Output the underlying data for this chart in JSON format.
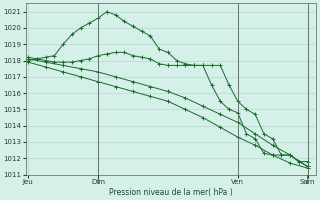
{
  "bg_color": "#d4f0e8",
  "grid_color": "#b8d8cc",
  "line_color": "#1a6b2a",
  "ylabel": "Pression niveau de la mer( hPa )",
  "ylim": [
    1011.0,
    1021.5
  ],
  "yticks": [
    1011,
    1012,
    1013,
    1014,
    1015,
    1016,
    1017,
    1018,
    1019,
    1020,
    1021
  ],
  "xtick_labels": [
    "Jeu",
    "| Dim",
    "Ven",
    "| Sam"
  ],
  "xtick_positions": [
    0,
    8,
    24,
    32
  ],
  "vline_positions": [
    8,
    24,
    32
  ],
  "series1_x": [
    0,
    1,
    2,
    3,
    4,
    5,
    6,
    7,
    8,
    9,
    10,
    11,
    12,
    13,
    14,
    15,
    16,
    17,
    18,
    19,
    20,
    21,
    22,
    23,
    24,
    25,
    26,
    27,
    28,
    29,
    30,
    31,
    32
  ],
  "series1_y": [
    1018.0,
    1018.1,
    1018.2,
    1018.3,
    1019.0,
    1019.6,
    1020.0,
    1020.3,
    1020.6,
    1021.0,
    1020.8,
    1020.4,
    1020.1,
    1019.8,
    1019.5,
    1018.7,
    1018.5,
    1018.0,
    1017.8,
    1017.7,
    1017.7,
    1017.7,
    1017.7,
    1016.5,
    1015.5,
    1015.0,
    1014.7,
    1013.5,
    1013.2,
    1012.2,
    1012.2,
    1011.8,
    1011.5
  ],
  "series2_x": [
    0,
    1,
    2,
    3,
    4,
    5,
    6,
    7,
    8,
    9,
    10,
    11,
    12,
    13,
    14,
    15,
    16,
    17,
    18,
    19,
    20,
    21,
    22,
    23,
    24,
    25,
    26,
    27,
    28,
    29,
    30,
    31,
    32
  ],
  "series2_y": [
    1018.2,
    1018.1,
    1018.0,
    1017.9,
    1017.9,
    1017.9,
    1018.0,
    1018.1,
    1018.3,
    1018.4,
    1018.5,
    1018.5,
    1018.3,
    1018.2,
    1018.1,
    1017.8,
    1017.7,
    1017.7,
    1017.7,
    1017.7,
    1017.7,
    1016.5,
    1015.5,
    1015.0,
    1014.8,
    1013.5,
    1013.2,
    1012.3,
    1012.2,
    1012.2,
    1012.2,
    1011.8,
    1011.8
  ],
  "series3_x": [
    0,
    2,
    4,
    6,
    8,
    10,
    12,
    14,
    16,
    18,
    20,
    22,
    24,
    26,
    28,
    30,
    32
  ],
  "series3_y": [
    1018.1,
    1017.9,
    1017.7,
    1017.5,
    1017.3,
    1017.0,
    1016.7,
    1016.4,
    1016.1,
    1015.7,
    1015.2,
    1014.7,
    1014.2,
    1013.5,
    1012.8,
    1012.2,
    1011.5
  ],
  "series4_x": [
    0,
    2,
    4,
    6,
    8,
    10,
    12,
    14,
    16,
    18,
    20,
    22,
    24,
    26,
    28,
    30,
    32
  ],
  "series4_y": [
    1017.9,
    1017.6,
    1017.3,
    1017.0,
    1016.7,
    1016.4,
    1016.1,
    1015.8,
    1015.5,
    1015.0,
    1014.5,
    1013.9,
    1013.3,
    1012.8,
    1012.2,
    1011.7,
    1011.4
  ]
}
